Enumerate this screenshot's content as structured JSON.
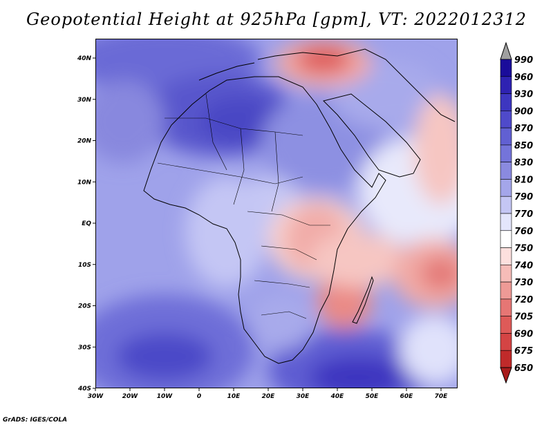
{
  "title": "Geopotential Height at 925hPa [gpm], VT: 2022012312",
  "credit": "GrADS: IGES/COLA",
  "lat_labels": [
    "40N",
    "30N",
    "20N",
    "10N",
    "EQ",
    "10S",
    "20S",
    "30S",
    "40S"
  ],
  "lon_labels": [
    "30W",
    "20W",
    "10W",
    "0",
    "10E",
    "20E",
    "30E",
    "40E",
    "50E",
    "60E",
    "70E"
  ],
  "colorbar": {
    "levels": [
      "990",
      "960",
      "930",
      "900",
      "870",
      "850",
      "830",
      "810",
      "790",
      "770",
      "760",
      "750",
      "740",
      "730",
      "720",
      "705",
      "690",
      "675",
      "650"
    ],
    "colors": [
      "#a0a0a0",
      "#1a0c9a",
      "#2e22b2",
      "#3d36c0",
      "#4f4aca",
      "#6160d2",
      "#7474da",
      "#8a8ae0",
      "#a4a6ea",
      "#c4c6f4",
      "#e4e6fc",
      "#ffffff",
      "#fde0de",
      "#f6bcb8",
      "#ee9a96",
      "#e67674",
      "#de5a58",
      "#d44444",
      "#c02a2a",
      "#a81c1c"
    ]
  }
}
